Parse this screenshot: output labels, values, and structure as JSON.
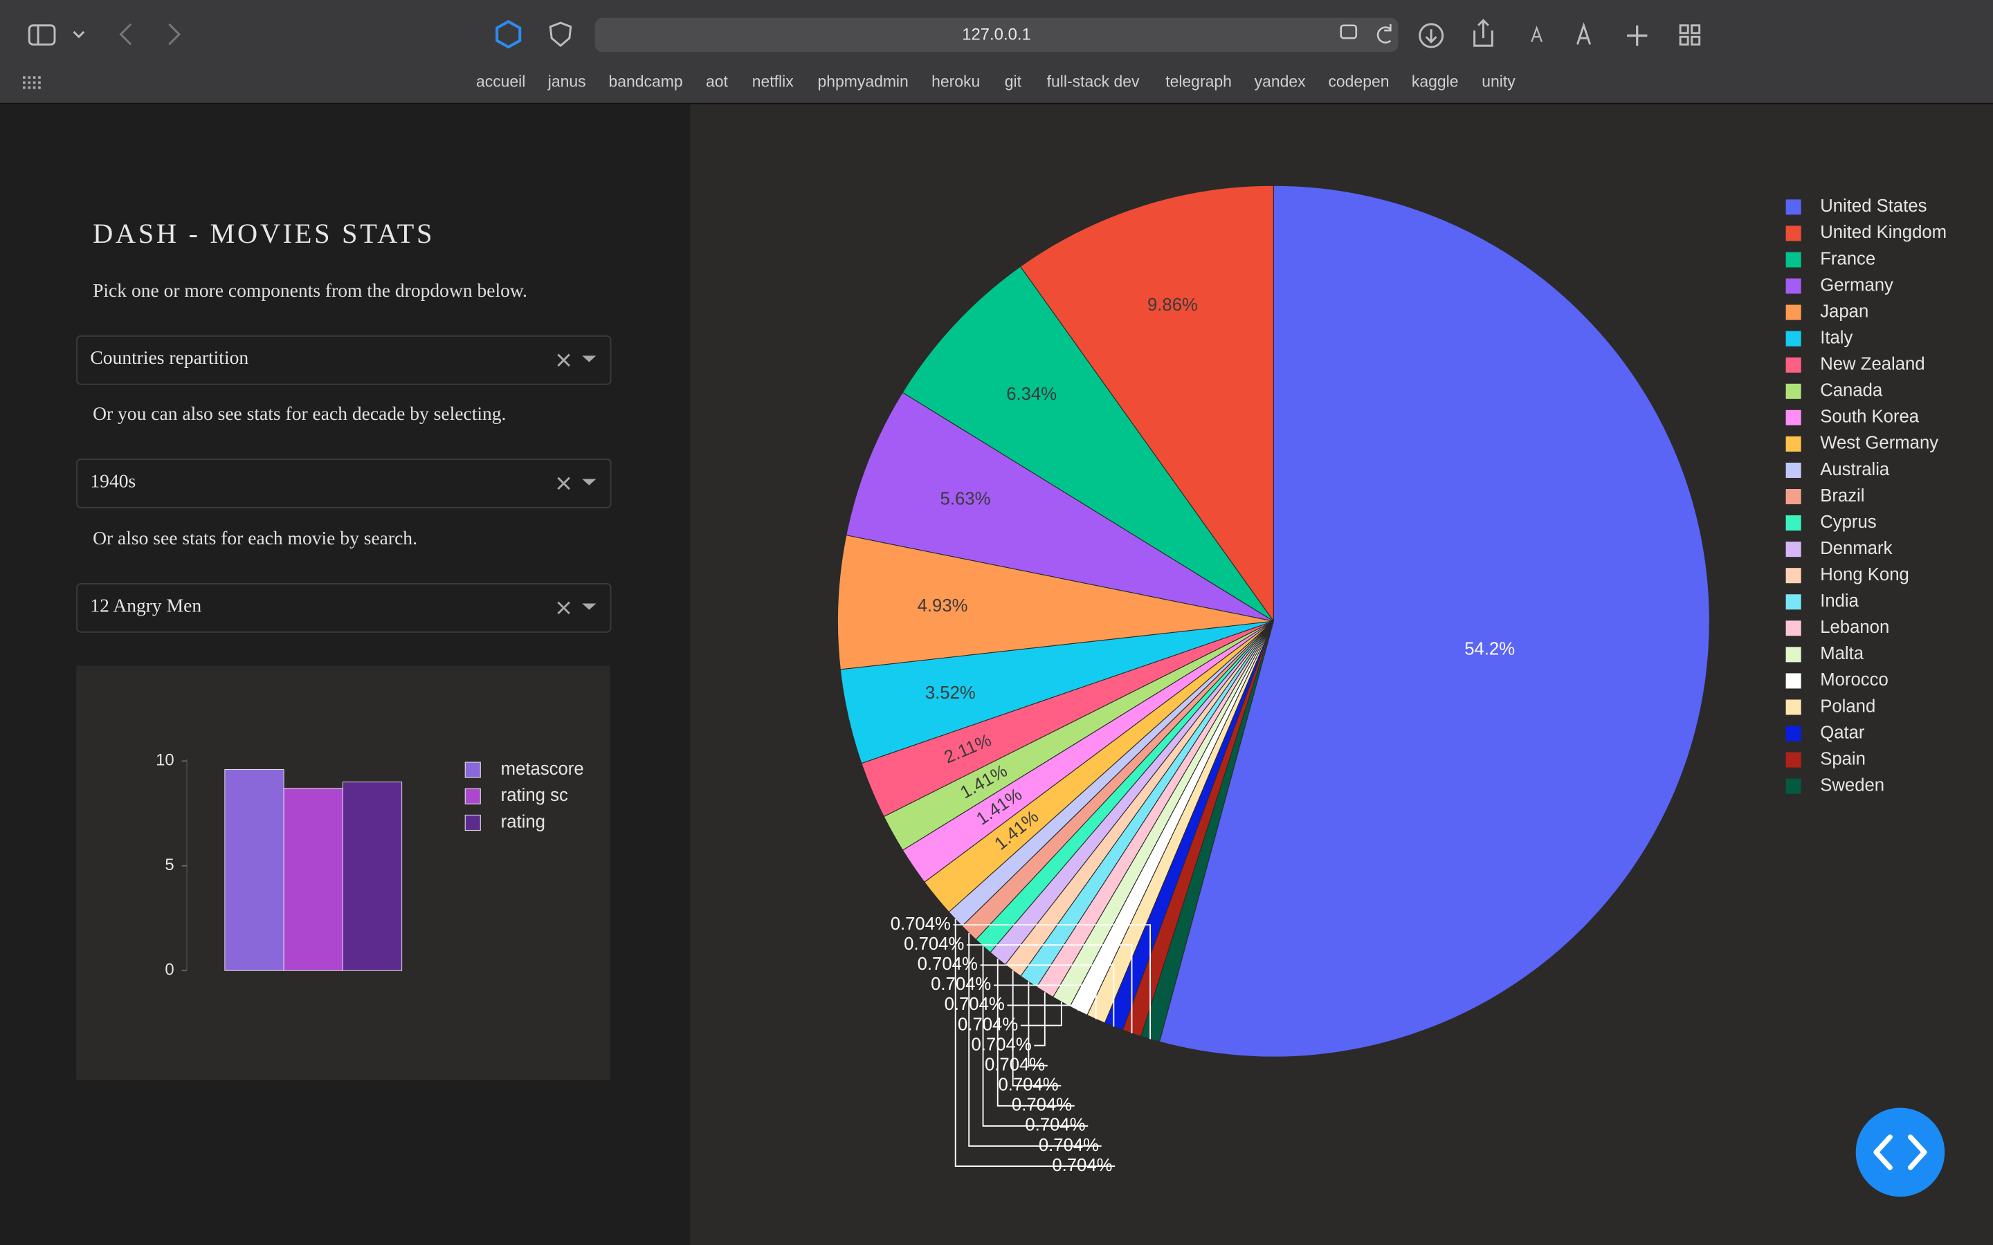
{
  "browser": {
    "url": "127.0.0.1",
    "bookmarks": [
      "accueil",
      "janus",
      "bandcamp",
      "aot",
      "netflix",
      "phpmyadmin",
      "heroku",
      "git",
      "full-stack dev",
      "telegraph",
      "yandex",
      "codepen",
      "kaggle",
      "unity"
    ]
  },
  "app": {
    "title": "DASH - MOVIES STATS",
    "prompts": [
      "Pick one or more components from the dropdown below.",
      "Or you can also see stats for each decade by selecting.",
      "Or also see stats for each movie by search."
    ],
    "dropdowns": [
      "Countries repartition",
      "1940s",
      "12 Angry Men"
    ]
  },
  "chart_data": [
    {
      "type": "pie",
      "categories": [
        "United States",
        "United Kingdom",
        "France",
        "Germany",
        "Japan",
        "Italy",
        "New Zealand",
        "Canada",
        "South Korea",
        "West Germany",
        "Australia",
        "Brazil",
        "Cyprus",
        "Denmark",
        "Hong Kong",
        "India",
        "Lebanon",
        "Malta",
        "Morocco",
        "Poland",
        "Qatar",
        "Spain",
        "Sweden"
      ],
      "values": [
        54.2,
        9.86,
        6.34,
        5.63,
        4.93,
        3.52,
        2.11,
        1.41,
        1.41,
        1.41,
        0.704,
        0.704,
        0.704,
        0.704,
        0.704,
        0.704,
        0.704,
        0.704,
        0.704,
        0.704,
        0.704,
        0.704,
        0.704
      ],
      "value_labels": [
        "54.2%",
        "9.86%",
        "6.34%",
        "5.63%",
        "4.93%",
        "3.52%",
        "2.11%",
        "1.41%",
        "1.41%",
        "1.41%",
        "0.704%",
        "0.704%",
        "0.704%",
        "0.704%",
        "0.704%",
        "0.704%",
        "0.704%",
        "0.704%",
        "0.704%",
        "0.704%",
        "0.704%",
        "0.704%",
        "0.704%"
      ],
      "colors": [
        "#5a64f5",
        "#ef4d35",
        "#00c48c",
        "#a45cf5",
        "#ff9a52",
        "#14ccf0",
        "#ff5f84",
        "#b0e27a",
        "#ff8ff5",
        "#ffc24a",
        "#c3c8fa",
        "#f5a08c",
        "#38f5c0",
        "#d6b8f8",
        "#ffd2b4",
        "#78e6f6",
        "#ffc6d6",
        "#e2f6cc",
        "#ffffff",
        "#ffe6b0",
        "#0a1ee0",
        "#ae2318",
        "#035a40"
      ],
      "direction": "counterclockwise",
      "legend": "right"
    },
    {
      "type": "bar",
      "categories": [
        null
      ],
      "series": [
        {
          "name": "metascore",
          "color": "#8b68d9",
          "values": [
            9.6
          ]
        },
        {
          "name": "rating sc",
          "color": "#ad47cf",
          "values": [
            8.7
          ]
        },
        {
          "name": "rating",
          "color": "#5d2b8e",
          "values": [
            9.0
          ]
        }
      ],
      "ylim": [
        0,
        10.1
      ],
      "yticks": [
        0,
        5,
        10
      ],
      "legend": "right"
    }
  ]
}
